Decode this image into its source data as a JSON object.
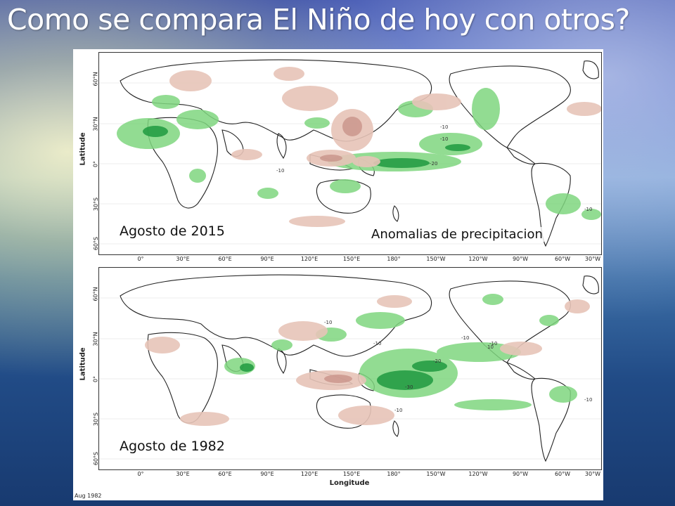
{
  "title": "Como se compara El Niño de hoy con otros?",
  "maps": [
    {
      "label": "Agosto de 2015",
      "annotation": "Anomalias de precipitacion",
      "contour_labels": [
        "-10",
        "-20",
        "-10",
        "-10",
        "-10"
      ]
    },
    {
      "label": "Agosto de 1982",
      "contour_labels": [
        "-10",
        "-10",
        "-20",
        "-30",
        "-10",
        "-10",
        "-10",
        "10",
        "-10"
      ]
    }
  ],
  "axes": {
    "lon_ticks": [
      "0°",
      "30°E",
      "60°E",
      "90°E",
      "120°E",
      "150°E",
      "180°",
      "150°W",
      "120°W",
      "90°W",
      "60°W",
      "30°W"
    ],
    "lat_ticks": [
      "60°N",
      "30°N",
      "0°",
      "30°S",
      "60°S"
    ],
    "lat_title": "Latitude",
    "lon_title": "Longitude"
  },
  "footnote": "Aug 1982",
  "colors": {
    "wet": "#7fd67f",
    "wet_strong": "#1f9a40",
    "dry": "#e7c4b8",
    "dry_strong": "#c9948a"
  }
}
